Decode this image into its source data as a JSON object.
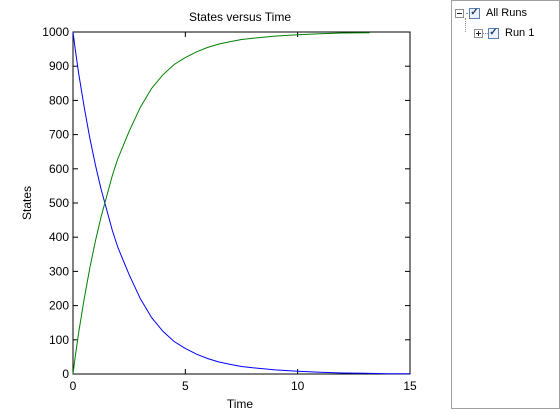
{
  "chart_data": {
    "type": "line",
    "title": "States versus Time",
    "xlabel": "Time",
    "ylabel": "States",
    "xlim": [
      0,
      15
    ],
    "ylim": [
      0,
      1000
    ],
    "xticks": [
      0,
      5,
      10,
      15
    ],
    "yticks": [
      0,
      100,
      200,
      300,
      400,
      500,
      600,
      700,
      800,
      900,
      1000
    ],
    "grid": false,
    "series": [
      {
        "color": "#0000ff",
        "x": [
          0,
          0.1,
          0.25,
          0.5,
          0.75,
          1,
          1.25,
          1.5,
          1.75,
          2,
          2.5,
          3,
          3.5,
          4,
          4.5,
          5,
          5.5,
          6,
          6.5,
          7,
          7.5,
          8,
          9,
          10,
          11,
          12,
          13,
          14,
          15
        ],
        "values": [
          1000,
          950,
          880,
          780,
          690,
          610,
          540,
          480,
          420,
          370,
          290,
          220,
          165,
          125,
          95,
          75,
          58,
          45,
          35,
          28,
          22,
          18,
          12,
          8,
          5,
          3,
          2,
          1,
          1
        ]
      },
      {
        "color": "#008000",
        "x": [
          0,
          0.1,
          0.25,
          0.5,
          0.75,
          1,
          1.25,
          1.5,
          1.75,
          2,
          2.5,
          3,
          3.5,
          4,
          4.5,
          5,
          5.5,
          6,
          6.5,
          7,
          7.5,
          8,
          9,
          10,
          11,
          12,
          13.2
        ],
        "values": [
          0,
          50,
          120,
          220,
          310,
          390,
          460,
          520,
          580,
          630,
          710,
          780,
          835,
          875,
          905,
          925,
          942,
          955,
          965,
          972,
          978,
          982,
          988,
          992,
          995,
          997,
          998
        ]
      }
    ]
  },
  "tree": {
    "root_label": "All Runs",
    "child_label": "Run 1",
    "check_glyph": "✓"
  }
}
